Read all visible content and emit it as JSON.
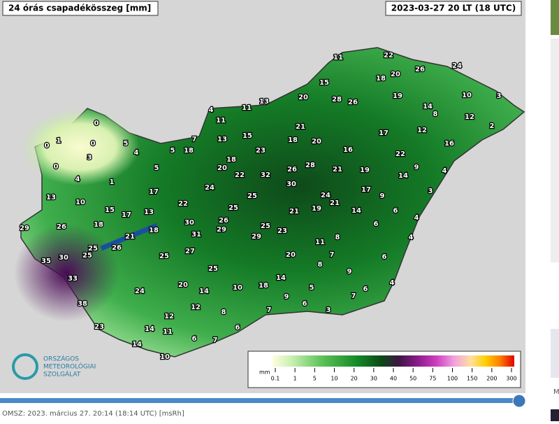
{
  "header": {
    "title": "24 órás csapadékösszeg [mm]",
    "timestamp": "2023-03-27 20 LT (18 UTC)"
  },
  "stations": [
    0,
    0,
    1,
    0,
    5,
    4,
    5,
    18,
    7,
    3,
    0,
    5,
    4,
    1,
    13,
    10,
    17,
    15,
    17,
    13,
    22,
    29,
    26,
    18,
    21,
    18,
    30,
    31,
    26,
    29,
    25,
    26,
    35,
    30,
    25,
    25,
    27,
    33,
    24,
    20,
    14,
    25,
    38,
    12,
    12,
    8,
    10,
    18,
    14,
    9,
    7,
    6,
    23,
    14,
    11,
    6,
    7,
    14,
    10,
    11,
    22,
    18,
    20,
    26,
    24,
    15,
    19,
    10,
    3,
    20,
    28,
    26,
    13,
    11,
    4,
    11,
    14,
    8,
    12,
    2,
    21,
    17,
    12,
    13,
    15,
    18,
    20,
    16,
    23,
    16,
    22,
    18,
    20,
    22,
    32,
    26,
    28,
    21,
    19,
    9,
    14,
    4,
    24,
    30,
    17,
    9,
    3,
    25,
    24,
    21,
    25,
    21,
    19,
    14,
    6,
    4,
    6,
    25,
    23,
    29,
    11,
    8,
    4,
    20,
    8,
    7,
    6,
    9,
    4,
    5,
    6,
    7,
    6,
    3
  ],
  "legend": {
    "unit": "mm",
    "ticks": [
      0.1,
      1,
      5,
      10,
      20,
      30,
      40,
      50,
      75,
      100,
      150,
      200,
      300
    ]
  },
  "logo": {
    "lines": [
      "ORSZÁGOS",
      "METEOROLÓGIAI",
      "SZOLGÁLAT"
    ]
  },
  "footer": {
    "caption": "OMSZ: 2023. március 27. 20:14 (18:14 UTC)  [msRh]"
  },
  "sidebar": {
    "fragment": "M"
  }
}
